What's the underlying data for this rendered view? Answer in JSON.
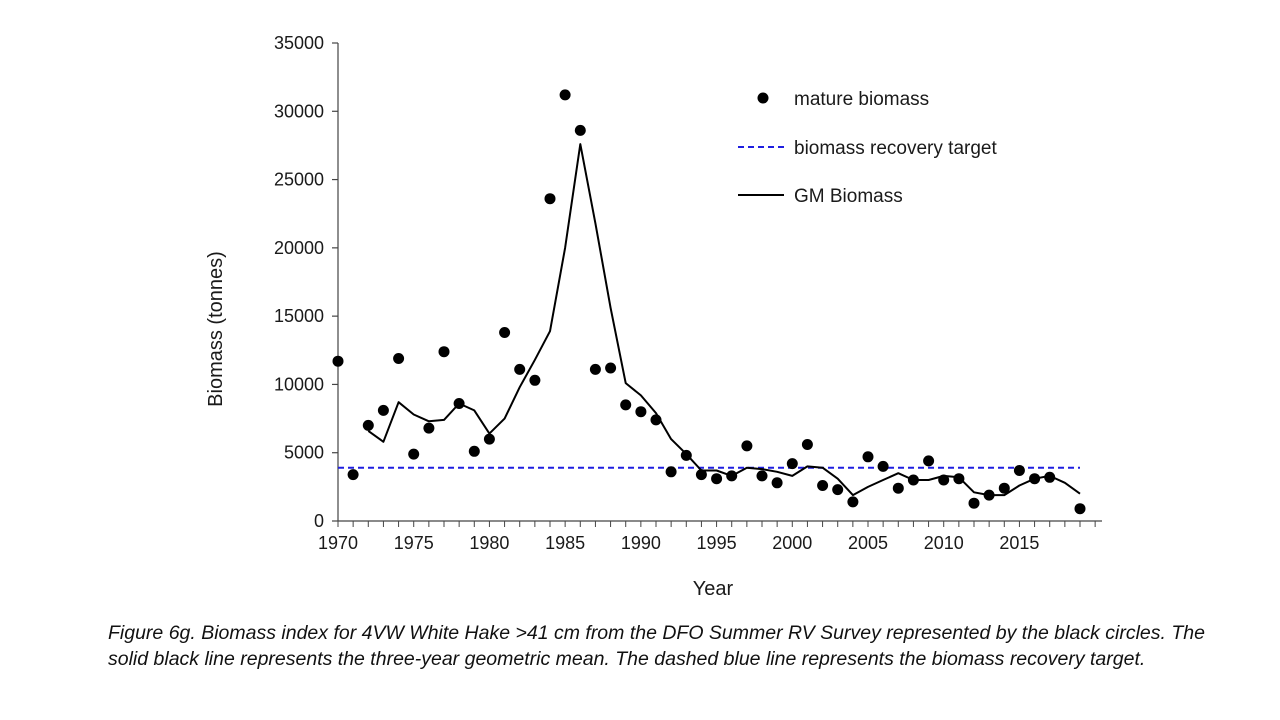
{
  "chart_data": {
    "type": "scatter",
    "xlabel": "Year",
    "ylabel": "Biomass (tonnes)",
    "xlim": [
      1970,
      2019
    ],
    "ylim": [
      0,
      35000
    ],
    "x_ticks": [
      1970,
      1975,
      1980,
      1985,
      1990,
      1995,
      2000,
      2005,
      2010,
      2015
    ],
    "y_ticks": [
      0,
      5000,
      10000,
      15000,
      20000,
      25000,
      30000,
      35000
    ],
    "legend_position": "top-right",
    "series": [
      {
        "name": "mature biomass",
        "kind": "points",
        "color": "#000000",
        "points": [
          [
            1970,
            11700
          ],
          [
            1971,
            3400
          ],
          [
            1972,
            7000
          ],
          [
            1973,
            8100
          ],
          [
            1974,
            11900
          ],
          [
            1975,
            4900
          ],
          [
            1976,
            6800
          ],
          [
            1977,
            12400
          ],
          [
            1978,
            8600
          ],
          [
            1979,
            5100
          ],
          [
            1980,
            6000
          ],
          [
            1981,
            13800
          ],
          [
            1982,
            11100
          ],
          [
            1983,
            10300
          ],
          [
            1984,
            23600
          ],
          [
            1985,
            31200
          ],
          [
            1986,
            28600
          ],
          [
            1987,
            11100
          ],
          [
            1988,
            11200
          ],
          [
            1989,
            8500
          ],
          [
            1990,
            8000
          ],
          [
            1991,
            7400
          ],
          [
            1992,
            3600
          ],
          [
            1993,
            4800
          ],
          [
            1994,
            3400
          ],
          [
            1995,
            3100
          ],
          [
            1996,
            3300
          ],
          [
            1997,
            5500
          ],
          [
            1998,
            3300
          ],
          [
            1999,
            2800
          ],
          [
            2000,
            4200
          ],
          [
            2001,
            5600
          ],
          [
            2002,
            2600
          ],
          [
            2003,
            2300
          ],
          [
            2004,
            1400
          ],
          [
            2005,
            4700
          ],
          [
            2006,
            4000
          ],
          [
            2007,
            2400
          ],
          [
            2008,
            3000
          ],
          [
            2009,
            4400
          ],
          [
            2010,
            3000
          ],
          [
            2011,
            3100
          ],
          [
            2012,
            1300
          ],
          [
            2013,
            1900
          ],
          [
            2014,
            2400
          ],
          [
            2015,
            3700
          ],
          [
            2016,
            3100
          ],
          [
            2017,
            3200
          ],
          [
            2019,
            900
          ]
        ]
      },
      {
        "name": "biomass recovery target",
        "kind": "hline",
        "color": "#1f1fe0",
        "y": 3900,
        "x_range": [
          1970,
          2019
        ]
      },
      {
        "name": "GM Biomass",
        "kind": "line",
        "color": "#000000",
        "points": [
          [
            1972,
            6600
          ],
          [
            1973,
            5800
          ],
          [
            1974,
            8700
          ],
          [
            1975,
            7800
          ],
          [
            1976,
            7300
          ],
          [
            1977,
            7400
          ],
          [
            1978,
            8600
          ],
          [
            1979,
            8100
          ],
          [
            1980,
            6400
          ],
          [
            1981,
            7500
          ],
          [
            1982,
            9800
          ],
          [
            1983,
            11800
          ],
          [
            1984,
            13900
          ],
          [
            1985,
            20000
          ],
          [
            1986,
            27600
          ],
          [
            1987,
            21800
          ],
          [
            1988,
            15600
          ],
          [
            1989,
            10100
          ],
          [
            1990,
            9200
          ],
          [
            1991,
            7900
          ],
          [
            1992,
            6000
          ],
          [
            1993,
            4900
          ],
          [
            1994,
            3700
          ],
          [
            1995,
            3700
          ],
          [
            1996,
            3300
          ],
          [
            1997,
            3900
          ],
          [
            1998,
            3800
          ],
          [
            1999,
            3600
          ],
          [
            2000,
            3300
          ],
          [
            2001,
            4000
          ],
          [
            2002,
            3900
          ],
          [
            2003,
            3100
          ],
          [
            2004,
            1900
          ],
          [
            2005,
            2500
          ],
          [
            2006,
            3000
          ],
          [
            2007,
            3500
          ],
          [
            2008,
            3000
          ],
          [
            2009,
            3000
          ],
          [
            2010,
            3300
          ],
          [
            2011,
            3200
          ],
          [
            2012,
            2100
          ],
          [
            2013,
            1900
          ],
          [
            2014,
            1900
          ],
          [
            2015,
            2600
          ],
          [
            2016,
            3100
          ],
          [
            2017,
            3300
          ],
          [
            2018,
            2800
          ],
          [
            2019,
            2000
          ]
        ]
      }
    ]
  },
  "caption": "Figure 6g. Biomass index for 4VW White Hake >41 cm from the DFO Summer RV Survey represented by the black circles. The solid black line represents the three-year geometric mean. The dashed blue line represents the biomass recovery target."
}
